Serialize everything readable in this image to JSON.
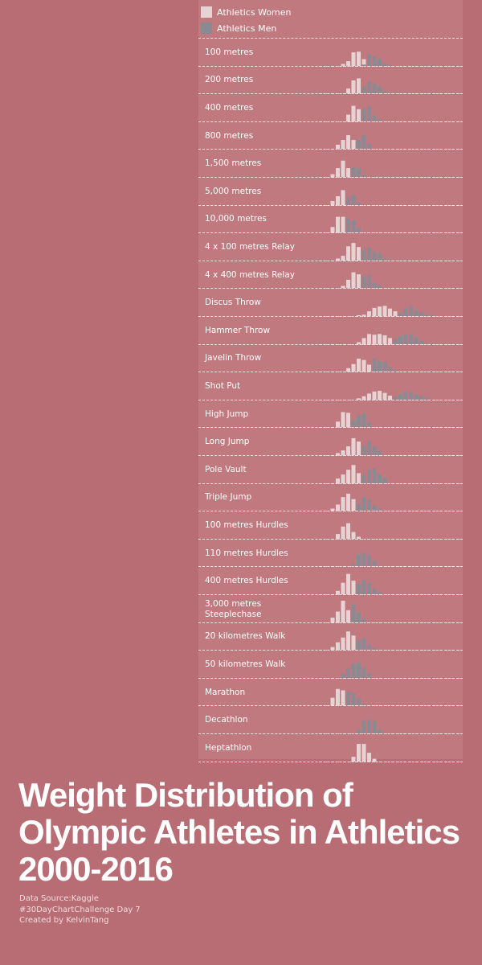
{
  "legend": {
    "women_label": "Athletics Women",
    "men_label": "Athletics Men",
    "women_color": "#e7d2d4",
    "men_color": "#8a8a93"
  },
  "title": {
    "line1": "Weight Distribution of",
    "line2": "Olympic Athletes in Athletics",
    "line3": "2000-2016"
  },
  "footer": {
    "source": "Data Source:Kaggle",
    "challenge": "#30DayChartChallenge  Day 7",
    "credit": "Created by KelvinTang"
  },
  "chart_data": {
    "type": "bar",
    "grid": false,
    "legend_position": "top-left",
    "series_names": [
      "Athletics Women",
      "Athletics Men"
    ],
    "rows": [
      {
        "event": "100 metres",
        "women": [
          [
            3,
            3
          ],
          [
            4,
            7
          ],
          [
            5,
            20
          ],
          [
            6,
            21
          ],
          [
            7,
            10
          ]
        ],
        "men": [
          [
            7,
            2
          ],
          [
            8,
            17
          ],
          [
            9,
            14
          ],
          [
            10,
            10
          ],
          [
            11,
            3
          ],
          [
            12,
            1
          ]
        ]
      },
      {
        "event": "200 metres",
        "women": [
          [
            4,
            7
          ],
          [
            5,
            19
          ],
          [
            6,
            22
          ]
        ],
        "men": [
          [
            7,
            10
          ],
          [
            8,
            17
          ],
          [
            9,
            15
          ],
          [
            10,
            10
          ],
          [
            11,
            3
          ]
        ]
      },
      {
        "event": "400 metres",
        "women": [
          [
            4,
            10
          ],
          [
            5,
            23
          ],
          [
            6,
            18
          ]
        ],
        "men": [
          [
            7,
            18
          ],
          [
            8,
            22
          ],
          [
            9,
            9
          ],
          [
            10,
            3
          ]
        ]
      },
      {
        "event": "800 metres",
        "women": [
          [
            2,
            6
          ],
          [
            3,
            13
          ],
          [
            4,
            20
          ],
          [
            5,
            13
          ]
        ],
        "men": [
          [
            6,
            13
          ],
          [
            7,
            20
          ],
          [
            8,
            8
          ]
        ]
      },
      {
        "event": "1,500 metres",
        "women": [
          [
            1,
            4
          ],
          [
            2,
            13
          ],
          [
            3,
            24
          ],
          [
            4,
            13
          ]
        ],
        "men": [
          [
            5,
            14
          ],
          [
            6,
            13
          ],
          [
            7,
            3
          ]
        ]
      },
      {
        "event": "5,000 metres",
        "women": [
          [
            1,
            6
          ],
          [
            2,
            13
          ],
          [
            3,
            22
          ]
        ],
        "men": [
          [
            4,
            11
          ],
          [
            5,
            15
          ],
          [
            6,
            4
          ]
        ]
      },
      {
        "event": "10,000 metres",
        "women": [
          [
            1,
            8
          ],
          [
            2,
            23
          ],
          [
            3,
            23
          ]
        ],
        "men": [
          [
            4,
            21
          ],
          [
            5,
            18
          ],
          [
            6,
            7
          ]
        ]
      },
      {
        "event": "4 x 100 metres Relay",
        "women": [
          [
            2,
            3
          ],
          [
            3,
            7
          ],
          [
            4,
            21
          ],
          [
            5,
            26
          ],
          [
            6,
            20
          ]
        ],
        "men": [
          [
            7,
            16
          ],
          [
            8,
            19
          ],
          [
            9,
            13
          ],
          [
            10,
            10
          ],
          [
            11,
            3
          ],
          [
            12,
            2
          ]
        ]
      },
      {
        "event": "4 x 400 metres Relay",
        "women": [
          [
            3,
            3
          ],
          [
            4,
            12
          ],
          [
            5,
            23
          ],
          [
            6,
            20
          ]
        ],
        "men": [
          [
            7,
            16
          ],
          [
            8,
            18
          ],
          [
            9,
            8
          ],
          [
            10,
            4
          ]
        ]
      },
      {
        "event": "Discus Throw",
        "women": [
          [
            6,
            1
          ],
          [
            7,
            2
          ],
          [
            8,
            7
          ],
          [
            9,
            12
          ],
          [
            10,
            14
          ],
          [
            11,
            15
          ],
          [
            12,
            11
          ],
          [
            13,
            7
          ]
        ],
        "men": [
          [
            14,
            4
          ],
          [
            15,
            11
          ],
          [
            16,
            14
          ],
          [
            17,
            9
          ],
          [
            18,
            5
          ],
          [
            19,
            2
          ],
          [
            20,
            1
          ]
        ]
      },
      {
        "event": "Hammer Throw",
        "women": [
          [
            6,
            3
          ],
          [
            7,
            9
          ],
          [
            8,
            15
          ],
          [
            9,
            14
          ],
          [
            10,
            15
          ],
          [
            11,
            13
          ],
          [
            12,
            9
          ]
        ],
        "men": [
          [
            13,
            7
          ],
          [
            14,
            12
          ],
          [
            15,
            14
          ],
          [
            16,
            15
          ],
          [
            17,
            10
          ],
          [
            18,
            5
          ]
        ]
      },
      {
        "event": "Javelin Throw",
        "women": [
          [
            4,
            5
          ],
          [
            5,
            11
          ],
          [
            6,
            19
          ],
          [
            7,
            17
          ],
          [
            8,
            10
          ]
        ],
        "men": [
          [
            9,
            19
          ],
          [
            10,
            15
          ],
          [
            11,
            14
          ],
          [
            12,
            7
          ],
          [
            13,
            2
          ]
        ]
      },
      {
        "event": "Shot Put",
        "women": [
          [
            6,
            2
          ],
          [
            7,
            5
          ],
          [
            8,
            9
          ],
          [
            9,
            12
          ],
          [
            10,
            13
          ],
          [
            11,
            10
          ],
          [
            12,
            6
          ]
        ],
        "men": [
          [
            13,
            4
          ],
          [
            14,
            8
          ],
          [
            15,
            12
          ],
          [
            16,
            11
          ],
          [
            17,
            8
          ],
          [
            18,
            5
          ],
          [
            19,
            3
          ]
        ]
      },
      {
        "event": "High Jump",
        "women": [
          [
            2,
            8
          ],
          [
            3,
            22
          ],
          [
            4,
            21
          ]
        ],
        "men": [
          [
            5,
            10
          ],
          [
            6,
            17
          ],
          [
            7,
            20
          ],
          [
            8,
            6
          ]
        ]
      },
      {
        "event": "Long Jump",
        "women": [
          [
            2,
            3
          ],
          [
            3,
            7
          ],
          [
            4,
            13
          ],
          [
            5,
            25
          ],
          [
            6,
            20
          ]
        ],
        "men": [
          [
            7,
            14
          ],
          [
            8,
            21
          ],
          [
            9,
            13
          ],
          [
            10,
            6
          ]
        ]
      },
      {
        "event": "Pole Vault",
        "women": [
          [
            2,
            7
          ],
          [
            3,
            13
          ],
          [
            4,
            20
          ],
          [
            5,
            27
          ],
          [
            6,
            15
          ]
        ],
        "men": [
          [
            7,
            12
          ],
          [
            8,
            20
          ],
          [
            9,
            22
          ],
          [
            10,
            13
          ],
          [
            11,
            8
          ]
        ]
      },
      {
        "event": "Triple Jump",
        "women": [
          [
            1,
            3
          ],
          [
            2,
            9
          ],
          [
            3,
            20
          ],
          [
            4,
            25
          ],
          [
            5,
            17
          ]
        ],
        "men": [
          [
            6,
            10
          ],
          [
            7,
            20
          ],
          [
            8,
            16
          ],
          [
            9,
            8
          ],
          [
            10,
            3
          ]
        ]
      },
      {
        "event": "100 metres Hurdles",
        "women": [
          [
            2,
            7
          ],
          [
            3,
            18
          ],
          [
            4,
            23
          ],
          [
            5,
            10
          ],
          [
            6,
            3
          ]
        ],
        "men": []
      },
      {
        "event": "110 metres Hurdles",
        "women": [],
        "men": [
          [
            5,
            3
          ],
          [
            6,
            17
          ],
          [
            7,
            20
          ],
          [
            8,
            17
          ],
          [
            9,
            8
          ]
        ]
      },
      {
        "event": "400 metres Hurdles",
        "women": [
          [
            2,
            5
          ],
          [
            3,
            17
          ],
          [
            4,
            30
          ],
          [
            5,
            20
          ]
        ],
        "men": [
          [
            6,
            15
          ],
          [
            7,
            21
          ],
          [
            8,
            16
          ],
          [
            9,
            8
          ],
          [
            10,
            3
          ]
        ]
      },
      {
        "event": "3,000 metres Steeplechase",
        "women": [
          [
            1,
            7
          ],
          [
            2,
            16
          ],
          [
            3,
            32
          ],
          [
            4,
            18
          ]
        ],
        "men": [
          [
            5,
            27
          ],
          [
            6,
            14
          ],
          [
            7,
            5
          ]
        ]
      },
      {
        "event": "20 kilometres Walk",
        "women": [
          [
            1,
            4
          ],
          [
            2,
            11
          ],
          [
            3,
            18
          ],
          [
            4,
            27
          ],
          [
            5,
            21
          ]
        ],
        "men": [
          [
            6,
            14
          ],
          [
            7,
            17
          ],
          [
            8,
            8
          ],
          [
            9,
            3
          ]
        ]
      },
      {
        "event": "50 kilometres Walk",
        "women": [],
        "men": [
          [
            3,
            6
          ],
          [
            4,
            14
          ],
          [
            5,
            21
          ],
          [
            6,
            22
          ],
          [
            7,
            15
          ],
          [
            8,
            6
          ]
        ]
      },
      {
        "event": "Marathon",
        "women": [
          [
            1,
            11
          ],
          [
            2,
            24
          ],
          [
            3,
            22
          ]
        ],
        "men": [
          [
            4,
            20
          ],
          [
            5,
            18
          ],
          [
            6,
            10
          ],
          [
            7,
            2
          ]
        ]
      },
      {
        "event": "Decathlon",
        "women": [],
        "men": [
          [
            6,
            5
          ],
          [
            7,
            18
          ],
          [
            8,
            20
          ],
          [
            9,
            18
          ],
          [
            10,
            5
          ]
        ]
      },
      {
        "event": "Heptathlon",
        "women": [
          [
            5,
            7
          ],
          [
            6,
            26
          ],
          [
            7,
            26
          ],
          [
            8,
            13
          ],
          [
            9,
            4
          ]
        ],
        "men": []
      }
    ]
  }
}
